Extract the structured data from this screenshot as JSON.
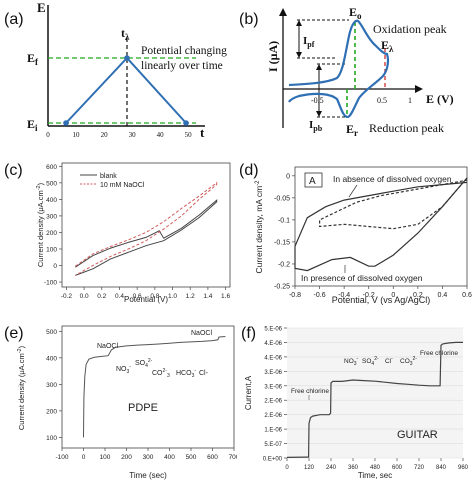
{
  "chart_data": [
    {
      "panel": "(a)",
      "type": "line",
      "ylabel": "E",
      "xlabel": "t",
      "yticks": [
        "E_f",
        "E_i"
      ],
      "xticks": [
        "0",
        "10",
        "20",
        "30",
        "40",
        "50"
      ],
      "peak_label": "t_λ",
      "annotation": "Potential changing linearly over time",
      "series": [
        {
          "x": [
            5,
            28,
            50
          ],
          "y": [
            0,
            1,
            0
          ]
        }
      ],
      "levels": {
        "E_i": 0,
        "E_f": 1
      },
      "xlim": [
        0,
        56
      ],
      "ylim": [
        -0.1,
        1.4
      ],
      "line_color": "#2f6fb3",
      "dash_color": "#22aa22"
    },
    {
      "panel": "(b)",
      "type": "line",
      "ylabel": "I (μA)",
      "xlabel": "E (V)",
      "xticks": [
        "-0.5",
        "0.5",
        "1"
      ],
      "labels": {
        "Eo": "E_o",
        "Er": "E_r",
        "Elambda": "E_λ",
        "Ipf": "I_pf",
        "Ipb": "I_pb"
      },
      "annotations": [
        "Oxidation peak",
        "Reduction peak"
      ],
      "peak_x": {
        "Eo": 0.25,
        "Er": 0.15,
        "Elambda": 0.55
      },
      "line_color": "#2f6fb3",
      "dash_color": "#22aa22",
      "elambda_color": "#d03030"
    },
    {
      "panel": "(c)",
      "type": "line",
      "xlabel": "Potential (V)",
      "ylabel": "Current density (μA.cm⁻²)",
      "xlim": [
        -0.25,
        1.65
      ],
      "ylim": [
        -130,
        620
      ],
      "xticks": [
        -0.2,
        0.0,
        0.2,
        0.4,
        0.6,
        0.8,
        1.0,
        1.2,
        1.4,
        1.6
      ],
      "xtick_labels": [
        "-0.2",
        "0.0",
        "0.2",
        "0.4",
        "0.6",
        "0.8",
        "1.0",
        "1.2",
        "1.4",
        "1.6"
      ],
      "yticks": [
        -100,
        0,
        100,
        200,
        300,
        400,
        500,
        600
      ],
      "legend_position": "top-left",
      "series": [
        {
          "name": "blank",
          "color": "#444444",
          "dash": false,
          "x": [
            -0.1,
            0.1,
            0.3,
            0.5,
            0.7,
            0.85,
            0.9,
            1.1,
            1.3,
            1.5,
            1.5,
            1.3,
            1.1,
            0.9,
            0.7,
            0.5,
            0.3,
            0.1,
            -0.1
          ],
          "y": [
            -10,
            60,
            105,
            140,
            170,
            210,
            165,
            225,
            305,
            395,
            385,
            290,
            215,
            150,
            120,
            80,
            40,
            -20,
            -60
          ]
        },
        {
          "name": "10 mM NaOCl",
          "color": "#d35a5a",
          "dash": true,
          "x": [
            -0.1,
            0.1,
            0.3,
            0.5,
            0.7,
            0.9,
            1.1,
            1.3,
            1.5,
            1.5,
            1.3,
            1.1,
            0.9,
            0.7,
            0.5,
            0.3,
            0.1,
            -0.1
          ],
          "y": [
            -5,
            70,
            115,
            155,
            200,
            265,
            345,
            420,
            500,
            490,
            400,
            300,
            220,
            150,
            100,
            55,
            0,
            -60
          ]
        }
      ]
    },
    {
      "panel": "(d)",
      "type": "line",
      "xlabel": "Potential, V (vs Ag/AgCl)",
      "ylabel": "Current density, mA cm⁻²",
      "inset_label": "A",
      "xlim": [
        -0.8,
        0.6
      ],
      "ylim": [
        -0.25,
        0.02
      ],
      "xticks": [
        -0.8,
        -0.6,
        -0.4,
        -0.2,
        0,
        0.2,
        0.4,
        0.6
      ],
      "xtick_labels": [
        "-0.8",
        "-0.6",
        "-0.4",
        "-0.2",
        "0",
        "0.2",
        "0.4",
        "0.6"
      ],
      "yticks": [
        -0.25,
        -0.2,
        -0.15,
        -0.1,
        -0.05,
        0
      ],
      "ytick_labels": [
        "-0.25",
        "-0.2",
        "-0.15",
        "-0.1",
        "-0.05",
        "0"
      ],
      "annotations": [
        "In absence of dissolved oxygen",
        "In presence of dissolved oxygen"
      ],
      "series": [
        {
          "name": "In presence of dissolved oxygen",
          "color": "#333333",
          "dash": false,
          "x": [
            0.6,
            0.4,
            0.2,
            0.0,
            -0.15,
            -0.2,
            -0.35,
            -0.5,
            -0.7,
            -0.8,
            -0.8,
            -0.7,
            -0.55,
            -0.4,
            -0.2,
            0.0,
            0.2,
            0.4,
            0.6
          ],
          "y": [
            -0.005,
            -0.07,
            -0.13,
            -0.18,
            -0.205,
            -0.205,
            -0.185,
            -0.19,
            -0.215,
            -0.21,
            -0.16,
            -0.095,
            -0.07,
            -0.055,
            -0.045,
            -0.035,
            -0.025,
            -0.02,
            -0.015
          ]
        },
        {
          "name": "In absence of dissolved oxygen",
          "color": "#333333",
          "dash": true,
          "x": [
            0.6,
            0.4,
            0.2,
            0.0,
            -0.2,
            -0.4,
            -0.6,
            -0.6,
            -0.45,
            -0.3,
            -0.1,
            0.1,
            0.3,
            0.5,
            0.6
          ],
          "y": [
            -0.005,
            -0.07,
            -0.11,
            -0.12,
            -0.115,
            -0.11,
            -0.115,
            -0.1,
            -0.08,
            -0.06,
            -0.045,
            -0.035,
            -0.025,
            -0.015,
            -0.01
          ]
        }
      ]
    },
    {
      "panel": "(e)",
      "type": "line",
      "title_in_plot": "PDPE",
      "xlabel": "Time (sec)",
      "ylabel": "Current density (μA.cm⁻²)",
      "xlim": [
        -100,
        700
      ],
      "ylim": [
        60,
        520
      ],
      "xticks": [
        -100,
        0,
        100,
        200,
        300,
        400,
        500,
        600,
        700
      ],
      "yticks": [
        100,
        200,
        300,
        400,
        500
      ],
      "annotations": [
        "NaOCl",
        "NO₃⁻",
        "SO₄²⁻",
        "CO₃²⁻",
        "HCO₃⁻",
        "Cl-",
        "NaOCl"
      ],
      "series": [
        {
          "color": "#555555",
          "x": [
            0,
            2,
            6,
            12,
            25,
            50,
            80,
            115,
            130,
            150,
            200,
            250,
            300,
            350,
            400,
            450,
            500,
            550,
            600,
            625,
            630,
            650,
            660
          ],
          "y": [
            100,
            250,
            330,
            375,
            395,
            402,
            405,
            408,
            430,
            440,
            445,
            448,
            450,
            452,
            455,
            458,
            460,
            462,
            465,
            468,
            478,
            480,
            480
          ]
        }
      ]
    },
    {
      "panel": "(f)",
      "type": "line",
      "title_in_plot": "GUITAR",
      "xlabel": "Time, sec",
      "ylabel": "Current,A",
      "xlim": [
        0,
        960
      ],
      "ylim": [
        0,
        4.5e-06
      ],
      "xticks": [
        0,
        120,
        240,
        360,
        480,
        600,
        720,
        840,
        960
      ],
      "yticks": [
        0,
        5e-07,
        1e-06,
        1.5e-06,
        2e-06,
        2.5e-06,
        3e-06,
        3.5e-06,
        4e-06,
        4.5e-06
      ],
      "ytick_labels": [
        "0.E+00",
        "5.E-07",
        "1.E-06",
        "2.E-06",
        "2.E-06",
        "3.E-06",
        "3.E-06",
        "4.E-06",
        "4.E-06",
        "5.E-06"
      ],
      "annotations": [
        "Free chlorine",
        "NO₃⁻",
        "SO₄²⁻",
        "Cl⁻",
        "CO₃²⁻",
        "Free chlorine"
      ],
      "series": [
        {
          "color": "#444444",
          "x": [
            0,
            100,
            118,
            120,
            128,
            140,
            180,
            230,
            238,
            240,
            250,
            300,
            360,
            420,
            480,
            540,
            600,
            660,
            720,
            780,
            835,
            840,
            850,
            880,
            920,
            960
          ],
          "y": [
            2e-08,
            3e-08,
            3e-08,
            1.2e-06,
            1.4e-06,
            1.45e-06,
            1.5e-06,
            1.5e-06,
            1.55e-06,
            2.6e-06,
            2.65e-06,
            2.65e-06,
            2.7e-06,
            2.68e-06,
            2.66e-06,
            2.62e-06,
            2.58e-06,
            2.55e-06,
            2.52e-06,
            2.5e-06,
            2.5e-06,
            3.9e-06,
            3.95e-06,
            3.98e-06,
            4e-06,
            4e-06
          ]
        }
      ]
    }
  ]
}
